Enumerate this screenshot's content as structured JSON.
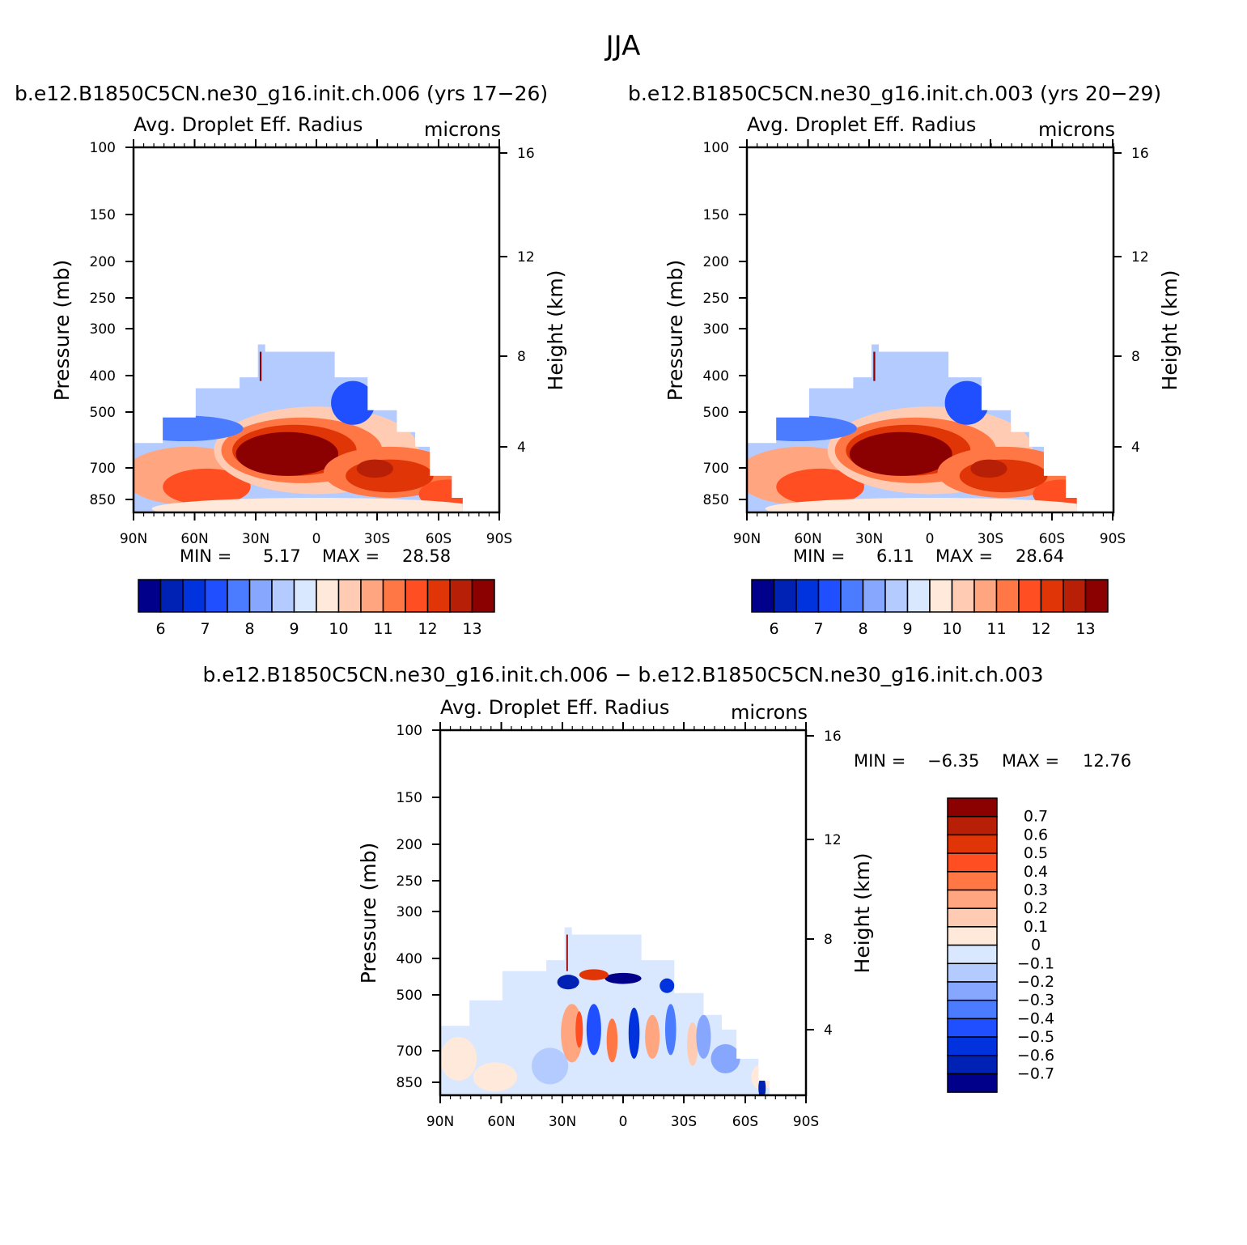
{
  "figure": {
    "title": "JJA"
  },
  "chart_data": [
    {
      "type": "heatmap",
      "run_label": "b.e12.B1850C5CN.ne30_g16.init.ch.006 (yrs 17−26)",
      "title": "Avg. Droplet Eff. Radius",
      "units": "microns",
      "ylabel": "Pressure (mb)",
      "y2label": "Height (km)",
      "x_ticks": [
        "90N",
        "60N",
        "30N",
        "0",
        "30S",
        "60S",
        "90S"
      ],
      "y_ticks": [
        "100",
        "150",
        "200",
        "250",
        "300",
        "400",
        "500",
        "700",
        "850"
      ],
      "y2_ticks": [
        "16",
        "12",
        "8",
        "4"
      ],
      "min_label": "MIN =",
      "min_value": "5.17",
      "max_label": "MAX =",
      "max_value": "28.58",
      "colorbar_labels": [
        "6",
        "7",
        "8",
        "9",
        "10",
        "11",
        "12",
        "13"
      ]
    },
    {
      "type": "heatmap",
      "run_label": "b.e12.B1850C5CN.ne30_g16.init.ch.003 (yrs 20−29)",
      "title": "Avg. Droplet Eff. Radius",
      "units": "microns",
      "ylabel": "Pressure (mb)",
      "y2label": "Height (km)",
      "x_ticks": [
        "90N",
        "60N",
        "30N",
        "0",
        "30S",
        "60S",
        "90S"
      ],
      "y_ticks": [
        "100",
        "150",
        "200",
        "250",
        "300",
        "400",
        "500",
        "700",
        "850"
      ],
      "y2_ticks": [
        "16",
        "12",
        "8",
        "4"
      ],
      "min_label": "MIN =",
      "min_value": "6.11",
      "max_label": "MAX =",
      "max_value": "28.64",
      "colorbar_labels": [
        "6",
        "7",
        "8",
        "9",
        "10",
        "11",
        "12",
        "13"
      ]
    },
    {
      "type": "heatmap",
      "run_label": "b.e12.B1850C5CN.ne30_g16.init.ch.006 − b.e12.B1850C5CN.ne30_g16.init.ch.003",
      "title": "Avg. Droplet Eff. Radius",
      "units": "microns",
      "ylabel": "Pressure (mb)",
      "y2label": "Height (km)",
      "x_ticks": [
        "90N",
        "60N",
        "30N",
        "0",
        "30S",
        "60S",
        "90S"
      ],
      "y_ticks": [
        "100",
        "150",
        "200",
        "250",
        "300",
        "400",
        "500",
        "700",
        "850"
      ],
      "y2_ticks": [
        "16",
        "12",
        "8",
        "4"
      ],
      "min_label": "MIN =",
      "min_value": "−6.35",
      "max_label": "MAX =",
      "max_value": "12.76",
      "colorbar_labels": [
        "0.7",
        "0.6",
        "0.5",
        "0.4",
        "0.3",
        "0.2",
        "0.1",
        "0",
        "−0.1",
        "−0.2",
        "−0.3",
        "−0.4",
        "−0.5",
        "−0.6",
        "−0.7"
      ]
    }
  ],
  "colors": {
    "abs_scale": [
      "#00008b",
      "#0022b4",
      "#0033dd",
      "#1f4fff",
      "#4b7cff",
      "#87a7ff",
      "#b4cbff",
      "#d9e8ff",
      "#ffe9db",
      "#ffccb3",
      "#ffa680",
      "#ff7744",
      "#ff4f22",
      "#e03507",
      "#b71f07",
      "#8b0000"
    ],
    "diff_scale": [
      "#8b0000",
      "#b71f07",
      "#e03507",
      "#ff4f22",
      "#ff7744",
      "#ffa680",
      "#ffccb3",
      "#ffe9db",
      "#d9e8ff",
      "#b4cbff",
      "#87a7ff",
      "#4b7cff",
      "#1f4fff",
      "#0033dd",
      "#0022b4",
      "#00008b"
    ]
  }
}
